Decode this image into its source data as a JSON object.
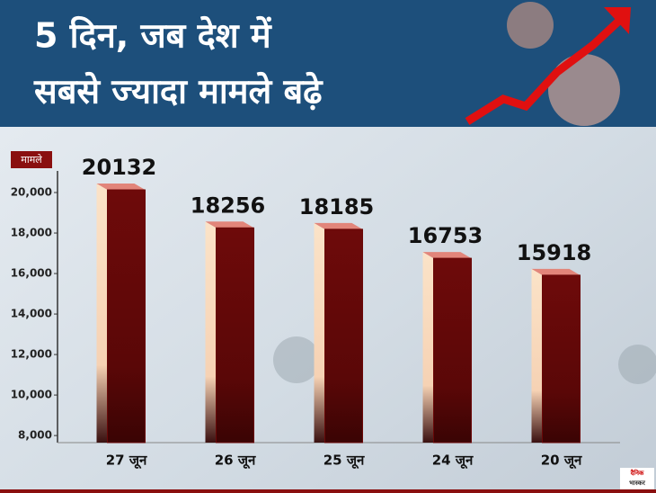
{
  "chart_data": {
    "type": "bar",
    "title": [
      "5 दिन, जब देश में",
      "सबसे ज्यादा मामले बढ़े"
    ],
    "y_label": "मामले",
    "categories": [
      "27 जून",
      "26 जून",
      "25 जून",
      "24 जून",
      "20 जून"
    ],
    "values": [
      20132,
      18256,
      18185,
      16753,
      15918
    ],
    "color": "#6a0808",
    "ylim": [
      7650,
      21000
    ],
    "yticks": [
      {
        "value": 8000,
        "label": "8,000"
      },
      {
        "value": 10000,
        "label": "10,000"
      },
      {
        "value": 12000,
        "label": "12,000"
      },
      {
        "value": 14000,
        "label": "14,000"
      },
      {
        "value": 16000,
        "label": "16,000"
      },
      {
        "value": 18000,
        "label": "18,000"
      },
      {
        "value": 20000,
        "label": "20,000"
      }
    ],
    "grid": false
  },
  "logo": [
    "दैनिक",
    "भास्कर"
  ]
}
